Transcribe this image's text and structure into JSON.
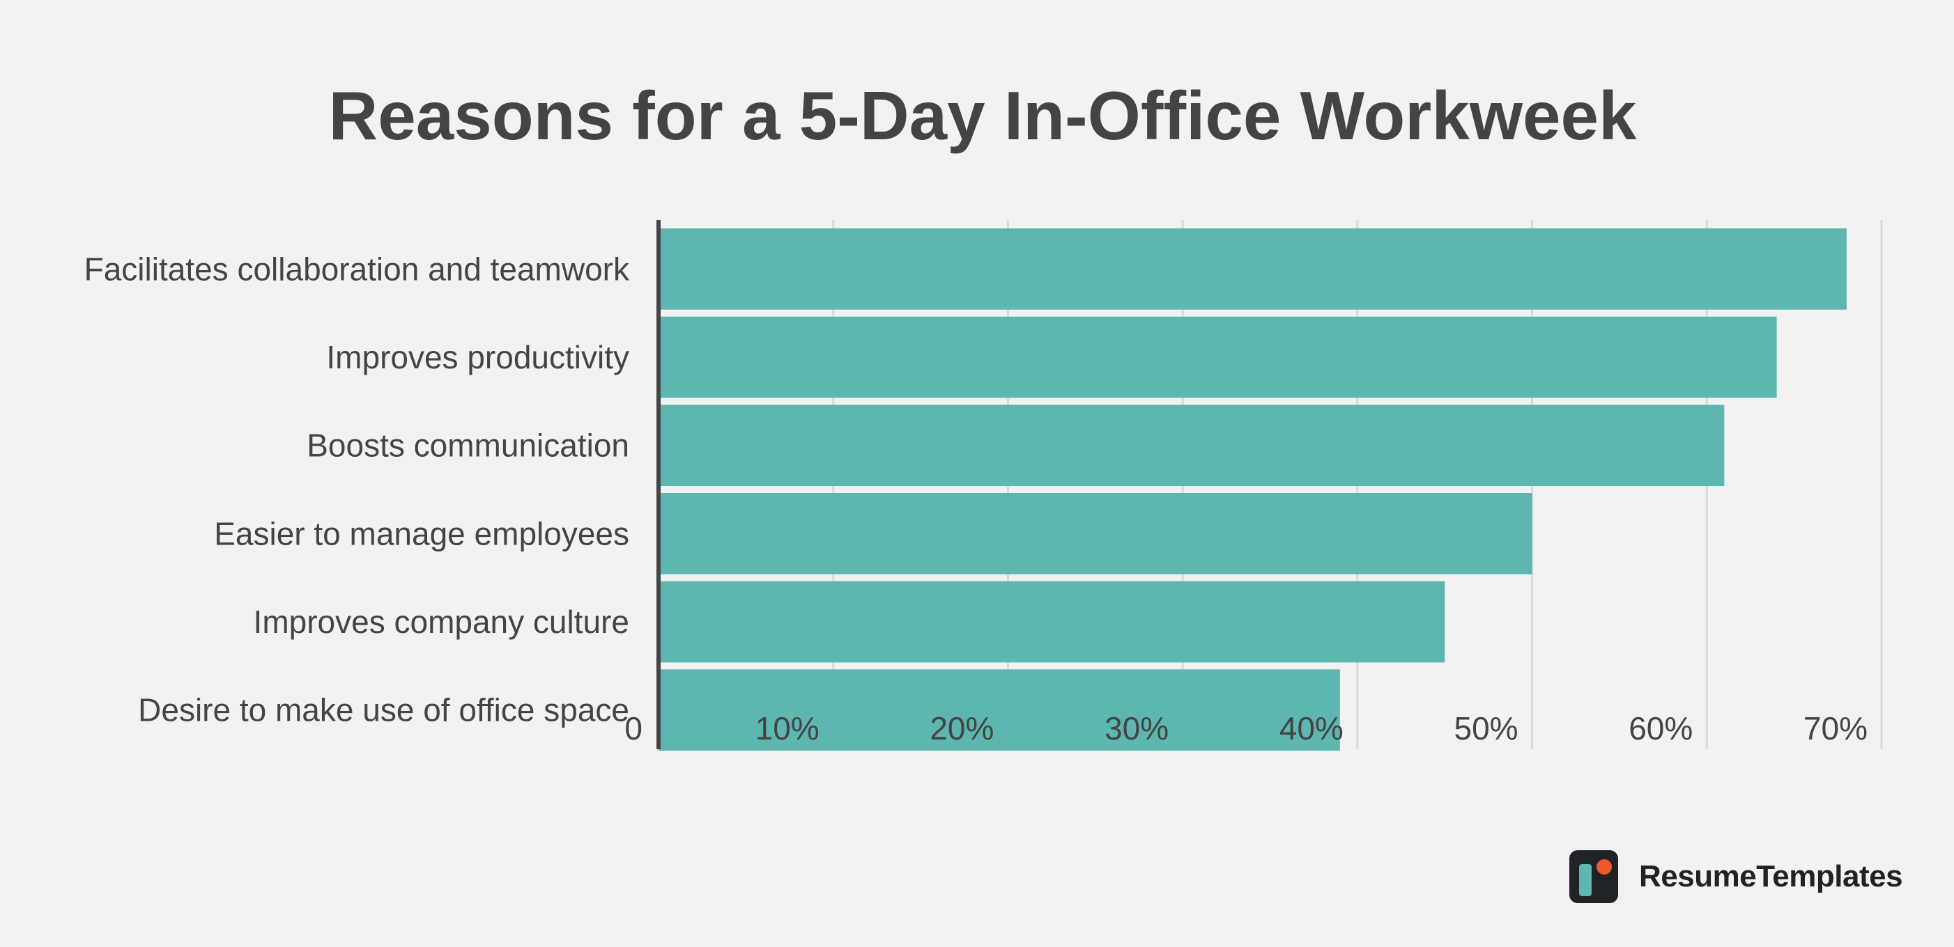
{
  "title": "Reasons for a 5-Day In-Office Workweek",
  "brand": {
    "name": "ResumeTemplates",
    "logo_icon": "resumetemplates-logo-icon"
  },
  "colors": {
    "bar": "#5db6b0",
    "axis": "#444444",
    "grid": "#d9d9d9",
    "background": "#f2f2f2"
  },
  "chart_data": {
    "type": "bar",
    "orientation": "horizontal",
    "title": "Reasons for a 5-Day In-Office Workweek",
    "categories": [
      "Facilitates collaboration and teamwork",
      "Improves productivity",
      "Boosts communication",
      "Easier to manage employees",
      "Improves company culture",
      "Desire to make use of office space"
    ],
    "values": [
      68,
      64,
      61,
      50,
      45,
      39
    ],
    "xlim": [
      0,
      70
    ],
    "ticks": [
      "0",
      "10%",
      "20%",
      "30%",
      "40%",
      "50%",
      "60%",
      "70%"
    ],
    "xlabel": "",
    "ylabel": "",
    "grid": true,
    "legend": "none"
  }
}
